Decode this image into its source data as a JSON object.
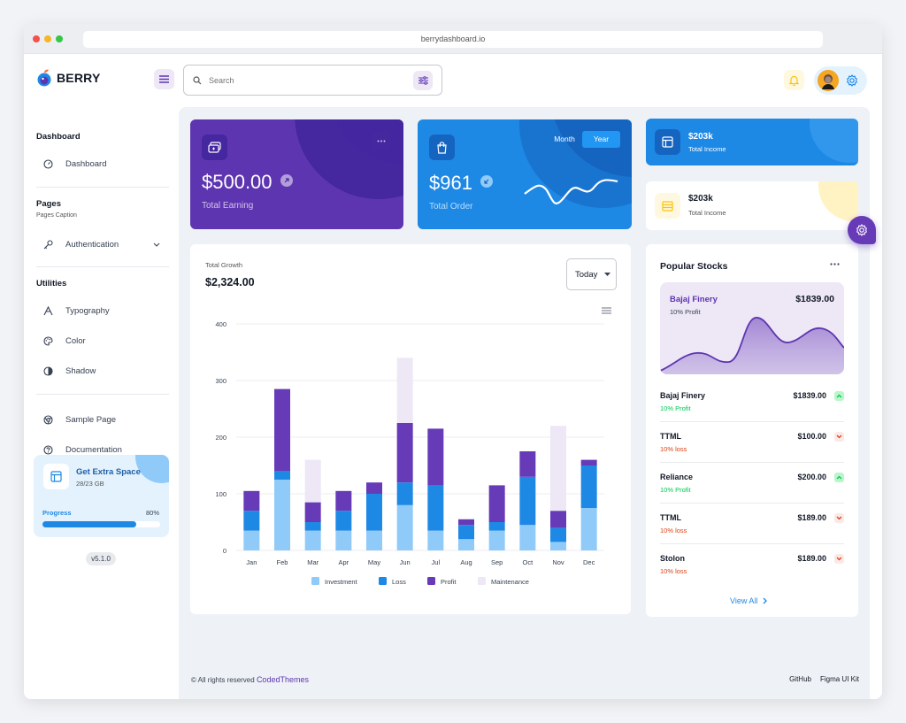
{
  "browser": {
    "url": "berrydashboard.io"
  },
  "header": {
    "brand": "BERRY",
    "search_placeholder": "Search"
  },
  "sidebar": {
    "dashboard_title": "Dashboard",
    "dashboard_item": "Dashboard",
    "pages_title": "Pages",
    "pages_caption": "Pages Caption",
    "authentication": "Authentication",
    "utilities_title": "Utilities",
    "typography": "Typography",
    "color": "Color",
    "shadow": "Shadow",
    "sample_page": "Sample Page",
    "documentation": "Documentation",
    "extra": {
      "title": "Get Extra Space",
      "subtitle": "28/23 GB",
      "progress_label": "Progress",
      "progress_text": "80%",
      "progress_value": 0.8
    },
    "version": "v5.1.0"
  },
  "cards": {
    "earning": {
      "value": "$500.00",
      "label": "Total Earning"
    },
    "order": {
      "value": "$961",
      "label": "Total Order",
      "month": "Month",
      "year": "Year"
    },
    "income1": {
      "value": "$203k",
      "label": "Total Income"
    },
    "income2": {
      "value": "$203k",
      "label": "Total Income"
    }
  },
  "growth": {
    "label": "Total Growth",
    "value": "$2,324.00",
    "period": "Today"
  },
  "chart_data": {
    "type": "bar",
    "stacked": true,
    "categories": [
      "Jan",
      "Feb",
      "Mar",
      "Apr",
      "May",
      "Jun",
      "Jul",
      "Aug",
      "Sep",
      "Oct",
      "Nov",
      "Dec"
    ],
    "series": [
      {
        "name": "Investment",
        "color": "#90caf9",
        "values": [
          35,
          125,
          35,
          35,
          35,
          80,
          35,
          20,
          35,
          45,
          15,
          75
        ]
      },
      {
        "name": "Loss",
        "color": "#1e88e5",
        "values": [
          35,
          15,
          15,
          35,
          65,
          40,
          80,
          25,
          15,
          85,
          25,
          75
        ]
      },
      {
        "name": "Profit",
        "color": "#673ab7",
        "values": [
          35,
          145,
          35,
          35,
          20,
          105,
          100,
          10,
          65,
          45,
          30,
          10
        ]
      },
      {
        "name": "Maintenance",
        "color": "#ede7f6",
        "values": [
          0,
          0,
          75,
          0,
          0,
          115,
          0,
          0,
          0,
          0,
          150,
          0
        ]
      }
    ],
    "ylim": [
      0,
      400
    ],
    "yticks": [
      0,
      100,
      200,
      300,
      400
    ],
    "legend": "bottom",
    "grid": true
  },
  "stocks": {
    "title": "Popular Stocks",
    "featured": {
      "name": "Bajaj Finery",
      "sub": "10% Profit",
      "price": "$1839.00"
    },
    "rows": [
      {
        "name": "Bajaj Finery",
        "price": "$1839.00",
        "sub": "10% Profit",
        "trend": "up"
      },
      {
        "name": "TTML",
        "price": "$100.00",
        "sub": "10% loss",
        "trend": "down"
      },
      {
        "name": "Reliance",
        "price": "$200.00",
        "sub": "10% Profit",
        "trend": "up"
      },
      {
        "name": "TTML",
        "price": "$189.00",
        "sub": "10% loss",
        "trend": "down"
      },
      {
        "name": "Stolon",
        "price": "$189.00",
        "sub": "10% loss",
        "trend": "down"
      }
    ],
    "view_all": "View All"
  },
  "footer": {
    "rights": "© All rights reserved",
    "brand": "CodedThemes",
    "github": "GitHub",
    "figma": "Figma UI Kit"
  }
}
